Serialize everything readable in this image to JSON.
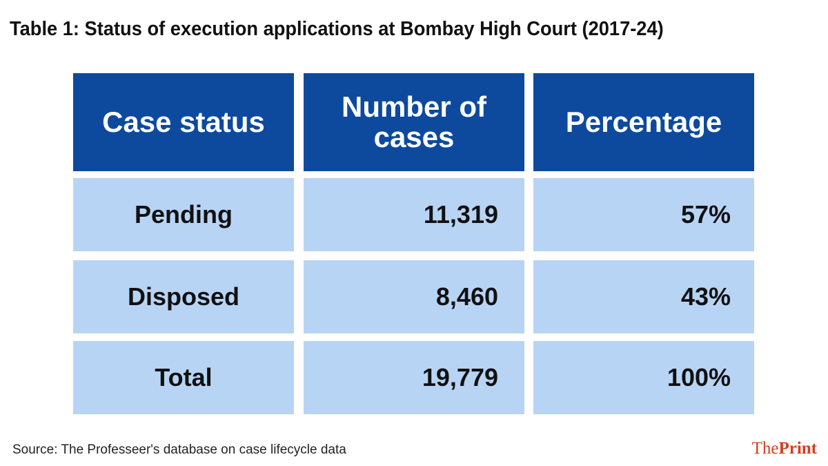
{
  "title": "Table 1: Status of execution applications at Bombay High Court (2017-24)",
  "table": {
    "headers": [
      "Case status",
      "Number of cases",
      "Percentage"
    ],
    "rows": [
      [
        "Pending",
        "11,319",
        "57%"
      ],
      [
        "Disposed",
        "8,460",
        "43%"
      ],
      [
        "Total",
        "19,779",
        "100%"
      ]
    ]
  },
  "source": "Source: The Professeer's database on case lifecycle data",
  "logo": {
    "part1": "The",
    "part2": "Print"
  },
  "colors": {
    "header": "#0d4a9e",
    "cell": "#b8d4f5",
    "logo": "#d2401f"
  }
}
